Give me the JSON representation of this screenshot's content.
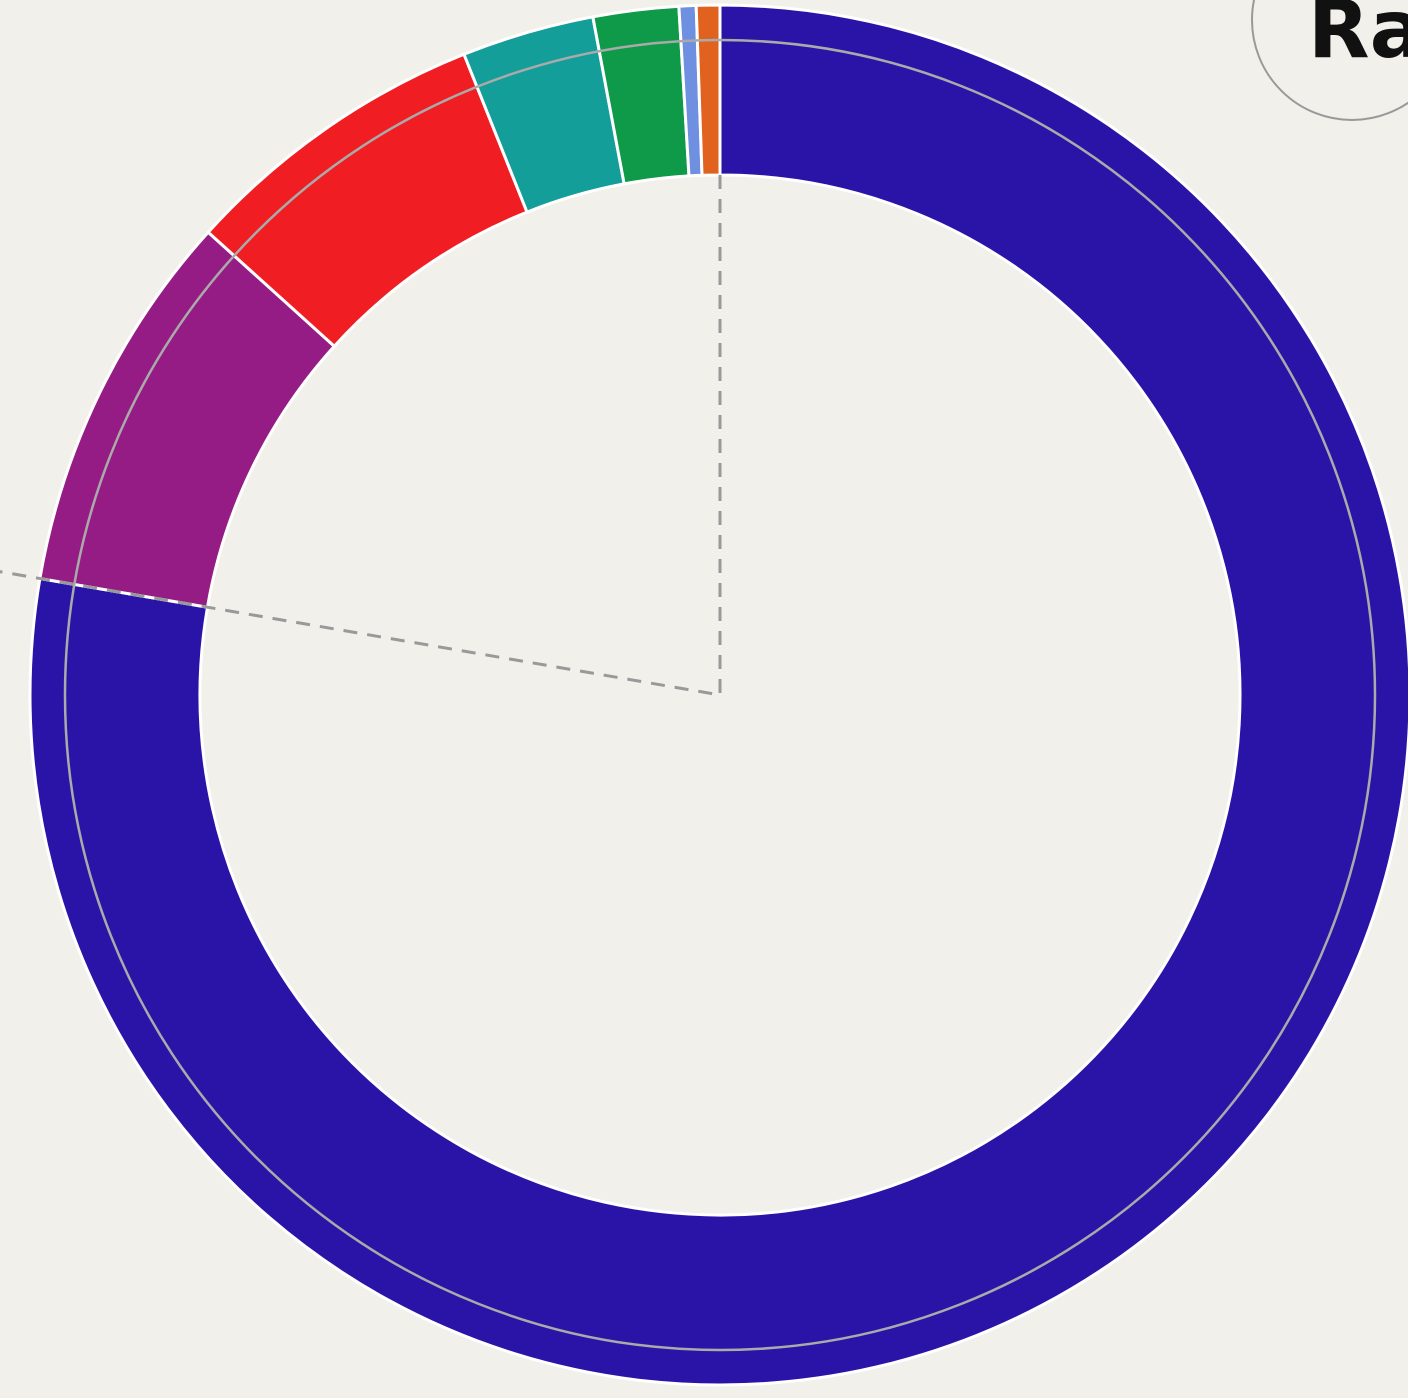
{
  "chart_data": {
    "type": "donut",
    "annotation": "Ra",
    "categories": [
      null,
      null,
      null,
      null,
      null,
      null,
      null
    ],
    "values": [
      77.7,
      9.0,
      7.25,
      3.1,
      2.0,
      0.4,
      0.55
    ],
    "colors": [
      "#2a14a8",
      "#951c85",
      "#f01e23",
      "#139e99",
      "#0e9a48",
      "#6f8fe0",
      "#e0621e"
    ]
  }
}
